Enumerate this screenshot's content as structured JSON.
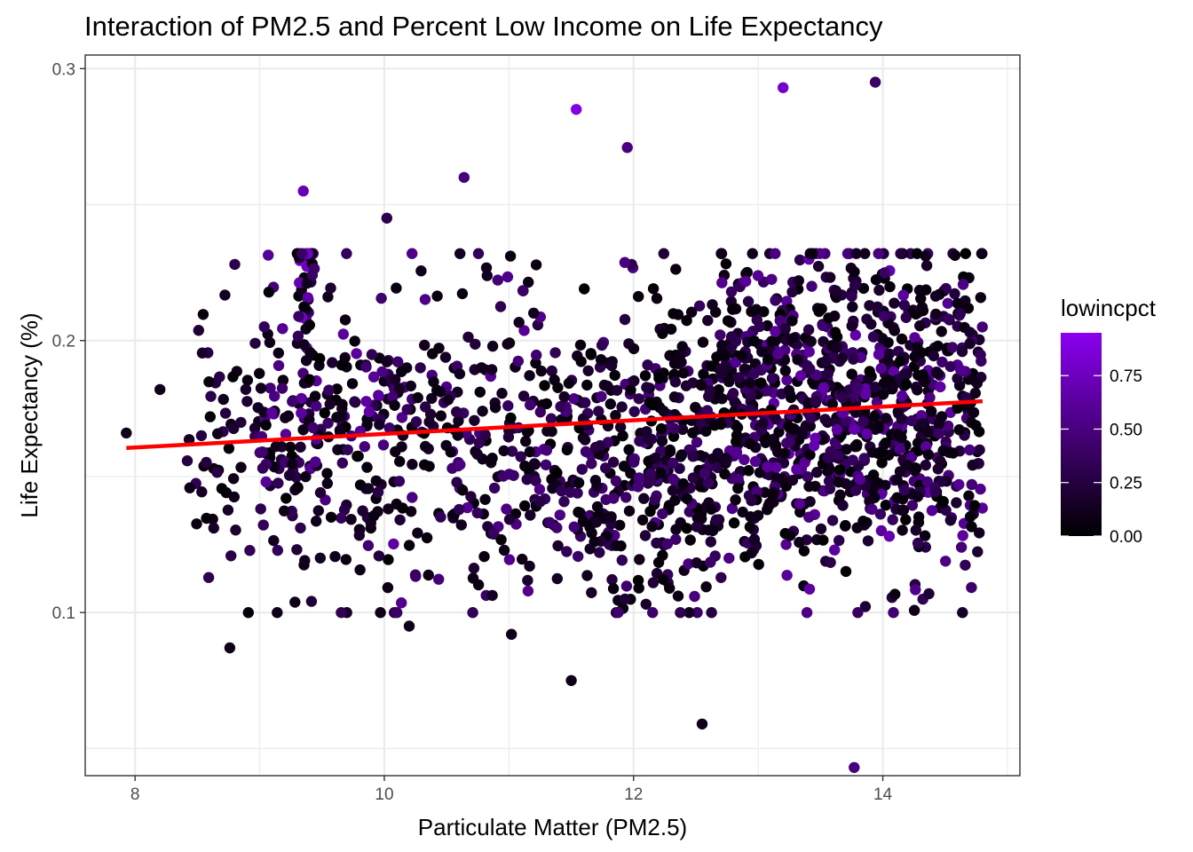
{
  "chart_data": {
    "type": "scatter",
    "title": "Interaction of PM2.5 and Percent Low Income on Life Expectancy",
    "xlabel": "Particulate Matter (PM2.5)",
    "ylabel": "Life Expectancy (%)",
    "xlim": [
      7.6,
      15.1
    ],
    "ylim": [
      0.04,
      0.305
    ],
    "x_ticks": [
      8,
      10,
      12,
      14
    ],
    "x_tick_labels": [
      "8",
      "10",
      "12",
      "14"
    ],
    "y_ticks": [
      0.1,
      0.2,
      0.3
    ],
    "y_tick_labels": [
      "0.1",
      "0.2",
      "0.3"
    ],
    "grid": true,
    "legend": {
      "title": "lowincpct",
      "placement": "right",
      "ticks": [
        0.0,
        0.25,
        0.5,
        0.75
      ],
      "tick_labels": [
        "0.00",
        "0.25",
        "0.50",
        "0.75"
      ],
      "range": [
        0.0,
        0.95
      ],
      "color_low": "#000000",
      "color_high": "#8a00f0"
    },
    "trend_line": {
      "x": [
        7.93,
        14.8
      ],
      "y": [
        0.1605,
        0.1777
      ],
      "color": "#ff0000"
    },
    "point_count_estimate": 2100,
    "x_range_points": [
      7.93,
      14.8
    ],
    "notable_points": [
      {
        "x": 7.93,
        "y": 0.166,
        "lowincpct": 0.1
      },
      {
        "x": 8.2,
        "y": 0.182,
        "lowincpct": 0.1
      },
      {
        "x": 8.76,
        "y": 0.087,
        "lowincpct": 0.1
      },
      {
        "x": 8.8,
        "y": 0.228,
        "lowincpct": 0.3
      },
      {
        "x": 9.35,
        "y": 0.255,
        "lowincpct": 0.7
      },
      {
        "x": 10.02,
        "y": 0.245,
        "lowincpct": 0.3
      },
      {
        "x": 10.2,
        "y": 0.095,
        "lowincpct": 0.1
      },
      {
        "x": 10.64,
        "y": 0.26,
        "lowincpct": 0.5
      },
      {
        "x": 11.02,
        "y": 0.092,
        "lowincpct": 0.1
      },
      {
        "x": 11.5,
        "y": 0.075,
        "lowincpct": 0.1
      },
      {
        "x": 11.54,
        "y": 0.285,
        "lowincpct": 0.9
      },
      {
        "x": 11.95,
        "y": 0.271,
        "lowincpct": 0.5
      },
      {
        "x": 12.55,
        "y": 0.059,
        "lowincpct": 0.1
      },
      {
        "x": 13.2,
        "y": 0.293,
        "lowincpct": 0.8
      },
      {
        "x": 13.77,
        "y": 0.043,
        "lowincpct": 0.5
      },
      {
        "x": 13.94,
        "y": 0.295,
        "lowincpct": 0.4
      }
    ],
    "clusters": [
      {
        "x": [
          8.4,
          9.0
        ],
        "y_mean": 0.162,
        "y_sd": 0.025,
        "n": 55,
        "low_max": 0.35
      },
      {
        "x": [
          9.0,
          9.7
        ],
        "y_mean": 0.168,
        "y_sd": 0.03,
        "n": 150,
        "low_max": 0.65
      },
      {
        "x": [
          9.3,
          9.45
        ],
        "y_mean": 0.225,
        "y_sd": 0.015,
        "n": 35,
        "low_max": 0.85
      },
      {
        "x": [
          9.7,
          10.5
        ],
        "y_mean": 0.165,
        "y_sd": 0.028,
        "n": 140,
        "low_max": 0.65
      },
      {
        "x": [
          10.5,
          11.3
        ],
        "y_mean": 0.162,
        "y_sd": 0.028,
        "n": 150,
        "low_max": 0.6
      },
      {
        "x": [
          11.3,
          12.0
        ],
        "y_mean": 0.156,
        "y_sd": 0.028,
        "n": 175,
        "low_max": 0.55
      },
      {
        "x": [
          12.0,
          12.7
        ],
        "y_mean": 0.158,
        "y_sd": 0.026,
        "n": 260,
        "low_max": 0.5
      },
      {
        "x": [
          12.7,
          13.4
        ],
        "y_mean": 0.176,
        "y_sd": 0.027,
        "n": 330,
        "low_max": 0.65
      },
      {
        "x": [
          13.4,
          14.1
        ],
        "y_mean": 0.178,
        "y_sd": 0.028,
        "n": 340,
        "low_max": 0.7
      },
      {
        "x": [
          14.1,
          14.8
        ],
        "y_mean": 0.172,
        "y_sd": 0.03,
        "n": 300,
        "low_max": 0.65
      }
    ]
  }
}
